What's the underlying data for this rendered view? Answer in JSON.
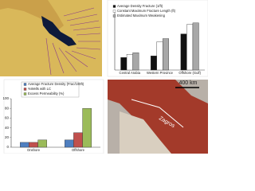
{
  "chart_data": [
    {
      "type": "bar",
      "series": [
        {
          "name": "Average Density Fracture (1/ft)",
          "color": "#111111",
          "values": [
            16,
            18,
            46
          ]
        },
        {
          "name": "Constant Maximum Fracture Length (ft)",
          "color": "#ffffff",
          "values": [
            20,
            36,
            58
          ]
        },
        {
          "name": "Estimated Maximum Weakening",
          "color": "#a8a8a8",
          "values": [
            22,
            40,
            60
          ]
        }
      ],
      "categories": [
        "Central Arabia",
        "Western Province",
        "Offshore (Gulf)"
      ],
      "ylim": [
        0,
        75
      ]
    },
    {
      "type": "bar",
      "series": [
        {
          "name": "Average Fracture Density (Frac/100ft)",
          "color": "#4f7fc0",
          "values": [
            10,
            15
          ]
        },
        {
          "name": "%Wells with LC",
          "color": "#c0504d",
          "values": [
            10,
            30
          ]
        },
        {
          "name": "Excess Permeability (%)",
          "color": "#9bbb59",
          "values": [
            15,
            80
          ]
        }
      ],
      "categories": [
        "Onshore",
        "Offshore"
      ],
      "ylim": [
        0,
        100
      ],
      "yticks": [
        0,
        20,
        40,
        60,
        80,
        100
      ]
    }
  ],
  "map_labels": {
    "scale": "400 km",
    "region": "Zagros"
  }
}
